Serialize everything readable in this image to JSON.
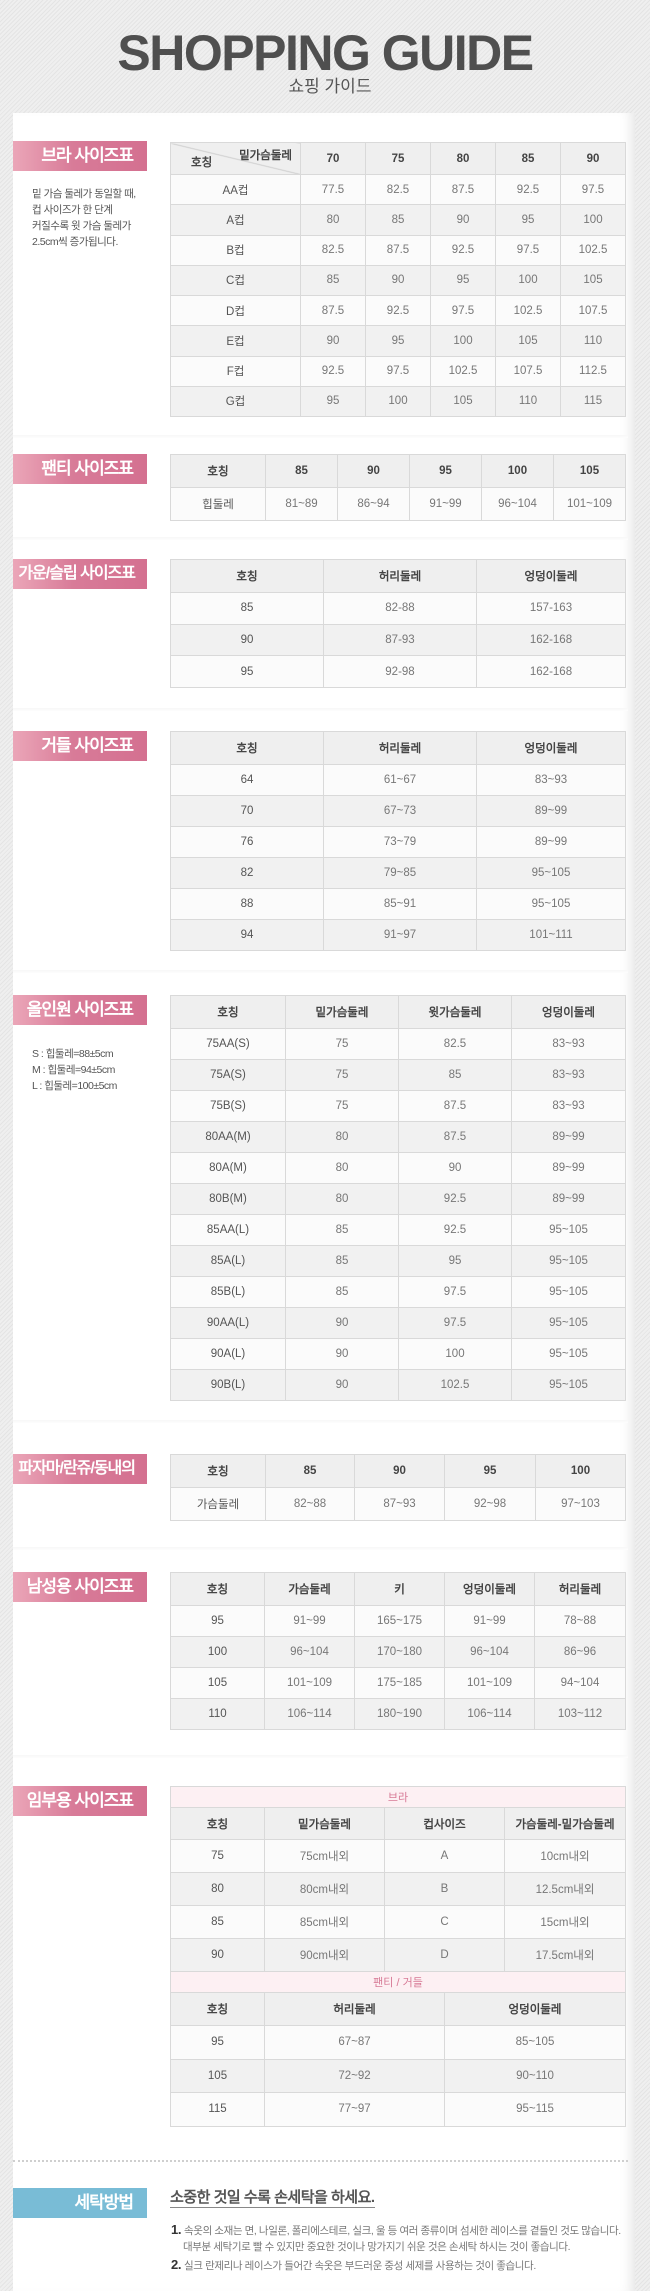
{
  "header": {
    "title": "SHOPPING GUIDE",
    "subtitle": "쇼핑 가이드"
  },
  "colors": {
    "label_pink": "#d87b98",
    "label_blue": "#79bcd6",
    "subheader_pink": "#d77a96"
  },
  "sections": {
    "bra": {
      "label": "브라 사이즈표",
      "note": [
        "밑 가슴 둘레가 동일할 때,",
        "컵 사이즈가 한 단계",
        "커질수록 윗 가슴 둘레가",
        "2.5cm씩 증가됩니다."
      ],
      "corner_top": "밑가슴둘레",
      "corner_bottom": "호칭",
      "headers": [
        "70",
        "75",
        "80",
        "85",
        "90"
      ],
      "rows": [
        [
          "AA컵",
          "77.5",
          "82.5",
          "87.5",
          "92.5",
          "97.5"
        ],
        [
          "A컵",
          "80",
          "85",
          "90",
          "95",
          "100"
        ],
        [
          "B컵",
          "82.5",
          "87.5",
          "92.5",
          "97.5",
          "102.5"
        ],
        [
          "C컵",
          "85",
          "90",
          "95",
          "100",
          "105"
        ],
        [
          "D컵",
          "87.5",
          "92.5",
          "97.5",
          "102.5",
          "107.5"
        ],
        [
          "E컵",
          "90",
          "95",
          "100",
          "105",
          "110"
        ],
        [
          "F컵",
          "92.5",
          "97.5",
          "102.5",
          "107.5",
          "112.5"
        ],
        [
          "G컵",
          "95",
          "100",
          "105",
          "110",
          "115"
        ]
      ]
    },
    "panty": {
      "label": "팬티 사이즈표",
      "headers": [
        "호칭",
        "85",
        "90",
        "95",
        "100",
        "105"
      ],
      "rows": [
        [
          "힙둘레",
          "81~89",
          "86~94",
          "91~99",
          "96~104",
          "101~109"
        ]
      ]
    },
    "gown": {
      "label": "가운/슬립 사이즈표",
      "headers": [
        "호칭",
        "허리둘레",
        "엉덩이둘레"
      ],
      "rows": [
        [
          "85",
          "82-88",
          "157-163"
        ],
        [
          "90",
          "87-93",
          "162-168"
        ],
        [
          "95",
          "92-98",
          "162-168"
        ]
      ]
    },
    "girdle": {
      "label": "거들 사이즈표",
      "headers": [
        "호칭",
        "허리둘레",
        "엉덩이둘레"
      ],
      "rows": [
        [
          "64",
          "61~67",
          "83~93"
        ],
        [
          "70",
          "67~73",
          "89~99"
        ],
        [
          "76",
          "73~79",
          "89~99"
        ],
        [
          "82",
          "79~85",
          "95~105"
        ],
        [
          "88",
          "85~91",
          "95~105"
        ],
        [
          "94",
          "91~97",
          "101~111"
        ]
      ]
    },
    "allinone": {
      "label": "올인원 사이즈표",
      "note": [
        "S : 힙둘레=88±5cm",
        "M : 힙둘레=94±5cm",
        "L : 힙둘레=100±5cm"
      ],
      "headers": [
        "호칭",
        "밑가슴둘레",
        "윗가슴둘레",
        "엉덩이둘레"
      ],
      "rows": [
        [
          "75AA(S)",
          "75",
          "82.5",
          "83~93"
        ],
        [
          "75A(S)",
          "75",
          "85",
          "83~93"
        ],
        [
          "75B(S)",
          "75",
          "87.5",
          "83~93"
        ],
        [
          "80AA(M)",
          "80",
          "87.5",
          "89~99"
        ],
        [
          "80A(M)",
          "80",
          "90",
          "89~99"
        ],
        [
          "80B(M)",
          "80",
          "92.5",
          "89~99"
        ],
        [
          "85AA(L)",
          "85",
          "92.5",
          "95~105"
        ],
        [
          "85A(L)",
          "85",
          "95",
          "95~105"
        ],
        [
          "85B(L)",
          "85",
          "97.5",
          "95~105"
        ],
        [
          "90AA(L)",
          "90",
          "97.5",
          "95~105"
        ],
        [
          "90A(L)",
          "90",
          "100",
          "95~105"
        ],
        [
          "90B(L)",
          "90",
          "102.5",
          "95~105"
        ]
      ]
    },
    "pajama": {
      "label": "파자마/란쥬/동내의",
      "headers": [
        "호칭",
        "85",
        "90",
        "95",
        "100"
      ],
      "rows": [
        [
          "가슴둘레",
          "82~88",
          "87~93",
          "92~98",
          "97~103"
        ]
      ]
    },
    "men": {
      "label": "남성용 사이즈표",
      "headers": [
        "호칭",
        "가슴둘레",
        "키",
        "엉덩이둘레",
        "허리둘레"
      ],
      "rows": [
        [
          "95",
          "91~99",
          "165~175",
          "91~99",
          "78~88"
        ],
        [
          "100",
          "96~104",
          "170~180",
          "96~104",
          "86~96"
        ],
        [
          "105",
          "101~109",
          "175~185",
          "101~109",
          "94~104"
        ],
        [
          "110",
          "106~114",
          "180~190",
          "106~114",
          "103~112"
        ]
      ]
    },
    "maternity": {
      "label": "임부용 사이즈표",
      "bra_title": "브라",
      "bra_headers": [
        "호칭",
        "밑가슴둘레",
        "컵사이즈",
        "가슴둘레-밑가슴둘레"
      ],
      "bra_rows": [
        [
          "75",
          "75cm내외",
          "A",
          "10cm내외"
        ],
        [
          "80",
          "80cm내외",
          "B",
          "12.5cm내외"
        ],
        [
          "85",
          "85cm내외",
          "C",
          "15cm내외"
        ],
        [
          "90",
          "90cm내외",
          "D",
          "17.5cm내외"
        ]
      ],
      "panty_title": "팬티 / 거들",
      "panty_headers": [
        "호칭",
        "허리둘레",
        "엉덩이둘레"
      ],
      "panty_rows": [
        [
          "95",
          "67~87",
          "85~105"
        ],
        [
          "105",
          "72~92",
          "90~110"
        ],
        [
          "115",
          "77~97",
          "95~115"
        ]
      ]
    }
  },
  "laundry": {
    "label": "세탁방법",
    "title": "소중한 것일 수록 손세탁을 하세요.",
    "items": [
      {
        "num": "1.",
        "lines": [
          "속옷의 소재는 면, 나일론, 폴리에스테르, 실크, 울 등 여러 종류이며 섬세한 레이스를 곁들인 것도 많습니다.",
          "대부분 세탁기로 빨 수 있지만 중요한 것이나 망가지기 쉬운 것은 손세탁 하시는 것이 좋습니다."
        ]
      },
      {
        "num": "2.",
        "lines": [
          "실크 란제리나 레이스가 들어간 속옷은 부드러운 중성 세제를 사용하는 것이 좋습니다."
        ]
      }
    ]
  }
}
